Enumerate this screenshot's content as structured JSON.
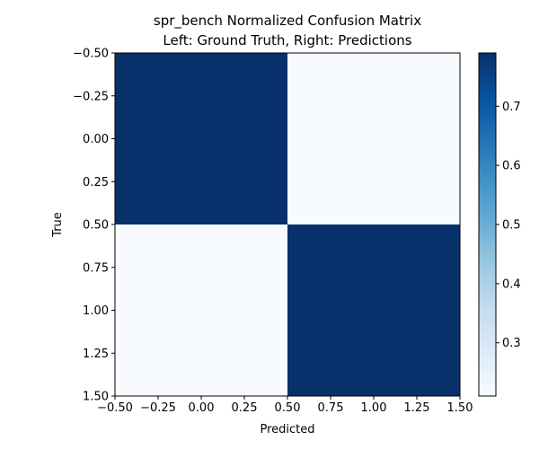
{
  "chart_data": {
    "type": "heatmap",
    "title": "spr_bench Normalized Confusion Matrix",
    "subtitle": "Left: Ground Truth, Right: Predictions",
    "xlabel": "Predicted",
    "ylabel": "True",
    "x_ticks": [
      "−0.50",
      "−0.25",
      "0.00",
      "0.25",
      "0.50",
      "0.75",
      "1.00",
      "1.25",
      "1.50"
    ],
    "y_ticks": [
      "−0.50",
      "−0.25",
      "0.00",
      "0.25",
      "0.50",
      "0.75",
      "1.00",
      "1.25",
      "1.50"
    ],
    "xlim": [
      -0.5,
      1.5
    ],
    "ylim": [
      -0.5,
      1.5
    ],
    "y_inverted": true,
    "matrix": [
      [
        0.79,
        0.21
      ],
      [
        0.21,
        0.79
      ]
    ],
    "colormap": "Blues",
    "colorbar": {
      "min": 0.21,
      "max": 0.79,
      "ticks": [
        "0.3",
        "0.4",
        "0.5",
        "0.6",
        "0.7"
      ]
    },
    "grid": false
  }
}
